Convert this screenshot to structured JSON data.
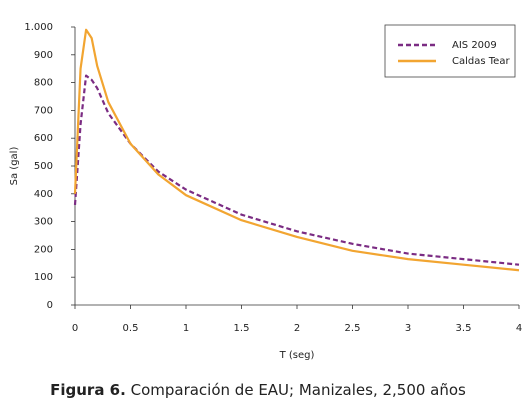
{
  "chart_data": {
    "type": "line",
    "y_label": "Sa (gal)",
    "x_label": "T (seg)",
    "caption_label": "Figura 6.",
    "caption": "Comparación de EAU; Manizales, 2,500 años",
    "x": [
      0,
      0.05,
      0.1,
      0.15,
      0.2,
      0.3,
      0.5,
      0.75,
      1,
      1.5,
      2,
      2.5,
      3,
      3.5,
      4
    ],
    "series": [
      {
        "name": "AIS 2009",
        "color": "#7b2c83",
        "dashed": true,
        "values": [
          360,
          650,
          825,
          810,
          780,
          690,
          580,
          480,
          415,
          325,
          265,
          220,
          185,
          165,
          145
        ]
      },
      {
        "name": "Caldas Tear",
        "color": "#f2a531",
        "dashed": false,
        "values": [
          400,
          850,
          990,
          960,
          860,
          730,
          580,
          470,
          395,
          305,
          245,
          195,
          165,
          145,
          125
        ]
      }
    ],
    "xlim": [
      0,
      4
    ],
    "xticks": [
      0,
      0.5,
      1,
      1.5,
      2,
      2.5,
      3,
      3.5,
      4
    ],
    "ylim": [
      0,
      1000
    ],
    "yticks": [
      0,
      100,
      200,
      300,
      400,
      500,
      600,
      700,
      800,
      900,
      {
        "value": 1000,
        "label": "1.000"
      }
    ],
    "grid": false,
    "legend": "upper right"
  }
}
